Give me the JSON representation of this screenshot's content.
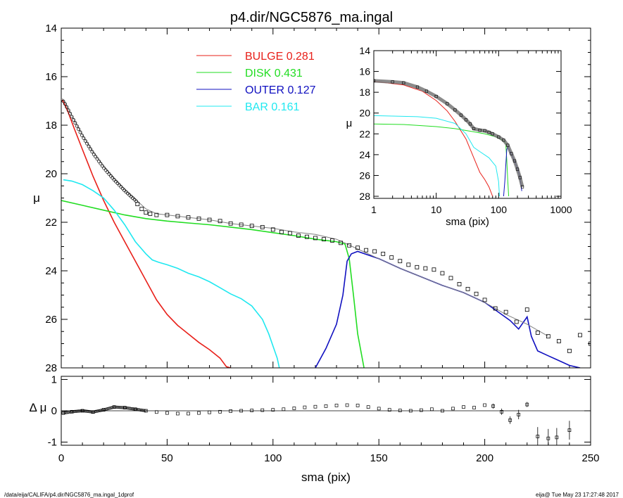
{
  "title": "p4.dir/NGC5876_ma.ingal",
  "footer": {
    "left": "/data/eija/CALIFA/p4.dir/NGC5876_ma.ingal_1dprof",
    "right": "eija@  Tue May 23 17:27:48 2017"
  },
  "colors": {
    "bulge": "#e8201a",
    "disk": "#22dd22",
    "outer": "#1010c0",
    "bar": "#20e8f0",
    "model": "#808080",
    "data": "#000000"
  },
  "legend": [
    {
      "name": "BULGE",
      "value": "0.281",
      "color": "#e8201a"
    },
    {
      "name": "DISK",
      "value": "0.431",
      "color": "#22dd22"
    },
    {
      "name": "OUTER",
      "value": "0.127",
      "color": "#1010c0"
    },
    {
      "name": "BAR",
      "value": "0.161",
      "color": "#20e8f0"
    }
  ],
  "chart_data": [
    {
      "type": "line",
      "panel": "main",
      "title": "p4.dir/NGC5876_ma.ingal",
      "xlabel": "",
      "ylabel": "μ",
      "xlim": [
        0,
        250
      ],
      "ylim": [
        28,
        14
      ],
      "xticks": [
        0,
        50,
        100,
        150,
        200,
        250
      ],
      "yticks": [
        14,
        16,
        18,
        20,
        22,
        24,
        26,
        28
      ],
      "series": [
        {
          "name": "BULGE",
          "color": "#e8201a",
          "x": [
            0.5,
            3,
            6,
            10,
            15,
            20,
            25,
            30,
            35,
            40,
            45,
            50,
            55,
            60,
            65,
            70,
            75,
            78,
            80
          ],
          "y": [
            16.95,
            17.4,
            18.1,
            19.0,
            20.1,
            21.1,
            22.0,
            22.8,
            23.6,
            24.4,
            25.2,
            25.8,
            26.25,
            26.6,
            26.95,
            27.25,
            27.6,
            27.95,
            28.0
          ]
        },
        {
          "name": "DISK",
          "color": "#22dd22",
          "x": [
            0,
            10,
            20,
            30,
            40,
            50,
            60,
            70,
            80,
            90,
            100,
            110,
            120,
            130,
            134,
            136,
            138,
            140,
            143
          ],
          "y": [
            21.1,
            21.3,
            21.5,
            21.7,
            21.85,
            21.95,
            22.03,
            22.1,
            22.2,
            22.3,
            22.43,
            22.55,
            22.7,
            22.8,
            22.9,
            23.5,
            25.0,
            26.6,
            28.0
          ]
        },
        {
          "name": "OUTER",
          "color": "#1010c0",
          "x": [
            120,
            125,
            130,
            133,
            135,
            137,
            140,
            145,
            150,
            160,
            170,
            180,
            190,
            200,
            208,
            212,
            216,
            220,
            222,
            225,
            230,
            235,
            240,
            245
          ],
          "y": [
            28.0,
            27.2,
            26.2,
            25.0,
            23.6,
            23.3,
            23.2,
            23.35,
            23.5,
            23.9,
            24.25,
            24.6,
            24.9,
            25.3,
            25.8,
            26.05,
            26.4,
            25.9,
            26.7,
            27.3,
            27.5,
            27.7,
            27.9,
            28.0
          ]
        },
        {
          "name": "BAR",
          "color": "#20e8f0",
          "x": [
            1,
            5,
            10,
            15,
            20,
            25,
            30,
            35,
            40,
            43,
            46,
            50,
            55,
            60,
            65,
            70,
            75,
            80,
            85,
            90,
            95,
            98,
            100,
            102,
            103
          ],
          "y": [
            20.25,
            20.3,
            20.45,
            20.7,
            21.0,
            21.5,
            22.1,
            22.8,
            23.3,
            23.55,
            23.65,
            23.75,
            23.9,
            24.1,
            24.25,
            24.45,
            24.7,
            24.95,
            25.15,
            25.45,
            26.0,
            26.6,
            27.1,
            27.6,
            28.0
          ]
        },
        {
          "name": "model",
          "color": "#808080",
          "x": [
            0.5,
            2,
            5,
            10,
            15,
            20,
            25,
            30,
            35,
            40,
            45,
            50,
            60,
            70,
            80,
            90,
            100,
            110,
            120,
            130,
            135,
            140,
            150,
            160,
            170,
            180,
            190,
            200,
            210,
            220,
            230
          ],
          "y": [
            16.9,
            17.1,
            17.6,
            18.4,
            19.1,
            19.7,
            20.2,
            20.65,
            21.05,
            21.45,
            21.65,
            21.7,
            21.8,
            21.9,
            22.05,
            22.15,
            22.25,
            22.4,
            22.5,
            22.7,
            22.9,
            23.1,
            23.5,
            23.9,
            24.25,
            24.6,
            24.9,
            25.3,
            25.8,
            26.2,
            26.7
          ]
        },
        {
          "name": "data",
          "marker": "square",
          "color": "#000000",
          "x": [
            36,
            38,
            40,
            42,
            45,
            50,
            55,
            60,
            65,
            70,
            75,
            80,
            85,
            90,
            95,
            100,
            104,
            108,
            112,
            116,
            120,
            124,
            128,
            132,
            136,
            140,
            144,
            148,
            152,
            156,
            160,
            164,
            168,
            172,
            176,
            180,
            184,
            188,
            192,
            196,
            200,
            205,
            210,
            215,
            220,
            225,
            230,
            235,
            240,
            245,
            250
          ],
          "y": [
            21.25,
            21.45,
            21.6,
            21.65,
            21.7,
            21.7,
            21.75,
            21.8,
            21.85,
            21.9,
            21.95,
            22.05,
            22.1,
            22.15,
            22.2,
            22.3,
            22.4,
            22.45,
            22.55,
            22.6,
            22.65,
            22.7,
            22.75,
            22.85,
            22.95,
            23.05,
            23.15,
            23.2,
            23.3,
            23.45,
            23.6,
            23.75,
            23.85,
            23.9,
            23.95,
            24.1,
            24.3,
            24.55,
            24.75,
            24.95,
            25.2,
            25.55,
            25.7,
            26.1,
            25.6,
            26.55,
            26.7,
            26.9,
            27.3,
            26.65,
            27.0
          ]
        }
      ]
    },
    {
      "type": "scatter",
      "panel": "residual",
      "xlabel": "sma (pix)",
      "ylabel": "Δ μ",
      "xlim": [
        0,
        250
      ],
      "ylim": [
        -1.1,
        1.1
      ],
      "xticks": [
        0,
        50,
        100,
        150,
        200,
        250
      ],
      "yticks": [
        1,
        0,
        -1
      ],
      "series": [
        {
          "name": "residual",
          "color": "#000000",
          "x": [
            1,
            5,
            10,
            15,
            20,
            25,
            30,
            35,
            40,
            45,
            50,
            55,
            60,
            65,
            70,
            75,
            80,
            85,
            90,
            95,
            100,
            105,
            110,
            115,
            120,
            125,
            130,
            135,
            140,
            145,
            150,
            155,
            160,
            165,
            170,
            175,
            180,
            185,
            190,
            195,
            200,
            204,
            208,
            212,
            216,
            220,
            225,
            230,
            234,
            240
          ],
          "y": [
            -0.07,
            -0.03,
            0.0,
            -0.04,
            0.03,
            0.12,
            0.1,
            0.05,
            0.0,
            -0.04,
            -0.07,
            -0.09,
            -0.09,
            -0.07,
            -0.05,
            -0.03,
            -0.01,
            0.0,
            0.01,
            0.02,
            0.03,
            0.05,
            0.08,
            0.11,
            0.13,
            0.15,
            0.17,
            0.18,
            0.17,
            0.12,
            0.07,
            0.03,
            0.01,
            0.0,
            0.02,
            0.05,
            0.0,
            0.07,
            0.12,
            0.1,
            0.18,
            0.15,
            -0.03,
            -0.3,
            -0.12,
            0.2,
            -0.82,
            -0.88,
            -0.85,
            -0.62
          ],
          "err": [
            0,
            0,
            0,
            0,
            0,
            0,
            0,
            0,
            0,
            0,
            0,
            0,
            0,
            0,
            0,
            0,
            0,
            0,
            0,
            0,
            0,
            0,
            0,
            0,
            0,
            0,
            0,
            0,
            0,
            0,
            0,
            0,
            0,
            0,
            0,
            0,
            0,
            0,
            0,
            0,
            0,
            0.08,
            0.1,
            0.12,
            0.15,
            0.08,
            0.3,
            0.3,
            0.3,
            0.3
          ]
        }
      ]
    },
    {
      "type": "line",
      "panel": "inset",
      "xlabel": "sma (pix)",
      "ylabel": "μ",
      "xscale": "log",
      "xlim": [
        1,
        1000
      ],
      "ylim": [
        28.2,
        14
      ],
      "xticks": [
        1,
        10,
        100,
        1000
      ],
      "yticks": [
        14,
        16,
        18,
        20,
        22,
        24,
        26,
        28
      ],
      "series": [
        {
          "name": "BULGE",
          "color": "#e8201a",
          "x": [
            1,
            3,
            6,
            10,
            15,
            20,
            30,
            40,
            50,
            60,
            70,
            80
          ],
          "y": [
            16.95,
            17.3,
            17.9,
            18.8,
            19.8,
            20.8,
            22.5,
            24.3,
            25.7,
            26.4,
            27.1,
            28.0
          ]
        },
        {
          "name": "DISK",
          "color": "#22dd22",
          "x": [
            1,
            3,
            10,
            20,
            40,
            60,
            80,
            100,
            120,
            130,
            135,
            140,
            145
          ],
          "y": [
            21.05,
            21.1,
            21.3,
            21.5,
            21.8,
            22.0,
            22.2,
            22.4,
            22.7,
            22.9,
            24.5,
            26.5,
            28.0
          ]
        },
        {
          "name": "OUTER",
          "color": "#1010c0",
          "x": [
            120,
            126,
            131,
            135,
            140,
            150,
            170,
            200,
            220,
            235
          ],
          "y": [
            28.0,
            26.5,
            24.8,
            23.5,
            23.2,
            23.6,
            24.3,
            25.3,
            26.2,
            27.5
          ]
        },
        {
          "name": "BAR",
          "color": "#20e8f0",
          "x": [
            1,
            5,
            10,
            20,
            30,
            40,
            50,
            70,
            90,
            100,
            103
          ],
          "y": [
            20.25,
            20.35,
            20.5,
            21.0,
            22.0,
            23.3,
            23.7,
            24.3,
            25.1,
            26.6,
            28.0
          ]
        },
        {
          "name": "data",
          "color": "#808080",
          "x": [
            1,
            2,
            3,
            5,
            7,
            10,
            15,
            20,
            25,
            30,
            35,
            40,
            50,
            60,
            70,
            80,
            100,
            120,
            140,
            160,
            180,
            200,
            220,
            240
          ],
          "y": [
            16.9,
            17.0,
            17.1,
            17.5,
            17.9,
            18.4,
            19.1,
            19.7,
            20.2,
            20.65,
            21.05,
            21.5,
            21.65,
            21.7,
            21.85,
            22.0,
            22.3,
            22.6,
            23.1,
            23.9,
            24.6,
            25.4,
            26.2,
            27.1
          ]
        }
      ]
    }
  ]
}
